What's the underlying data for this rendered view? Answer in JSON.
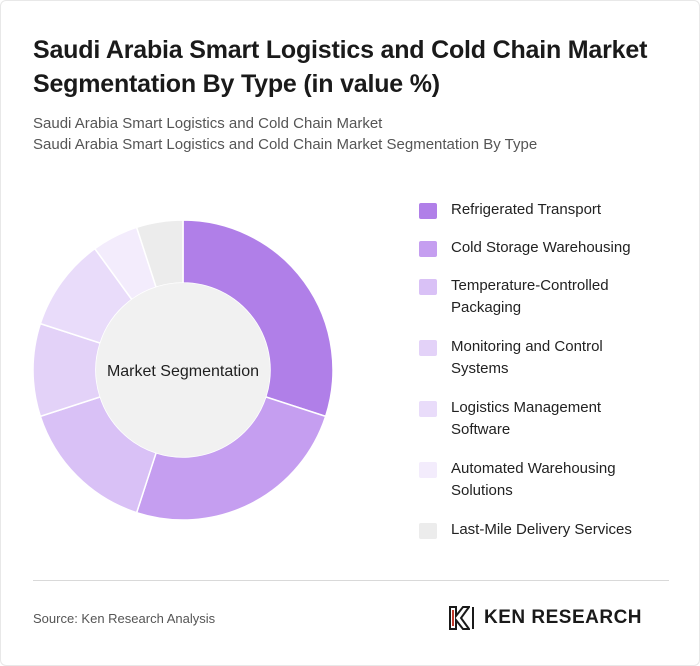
{
  "title": "Saudi Arabia Smart Logistics and Cold Chain Market Segmentation By Type (in value %)",
  "subtitle_lines": [
    "Saudi Arabia Smart Logistics and Cold Chain Market",
    "Saudi Arabia Smart Logistics and Cold Chain Market Segmentation By Type"
  ],
  "chart_data": {
    "type": "pie",
    "donut": true,
    "center_label": "Market Segmentation",
    "categories": [
      "Refrigerated Transport",
      "Cold Storage Warehousing",
      "Temperature-Controlled Packaging",
      "Monitoring and Control Systems",
      "Logistics Management Software",
      "Automated Warehousing Solutions",
      "Last-Mile Delivery Services"
    ],
    "values": [
      30,
      25,
      15,
      10,
      10,
      5,
      5
    ],
    "colors": [
      "#b07fe8",
      "#c59ef0",
      "#d9c1f6",
      "#e3d2f8",
      "#e9dcfa",
      "#f3ecfc",
      "#ececec"
    ],
    "legend_position": "right"
  },
  "footer": {
    "source": "Source: Ken Research Analysis",
    "logo_text": "KEN RESEARCH"
  }
}
